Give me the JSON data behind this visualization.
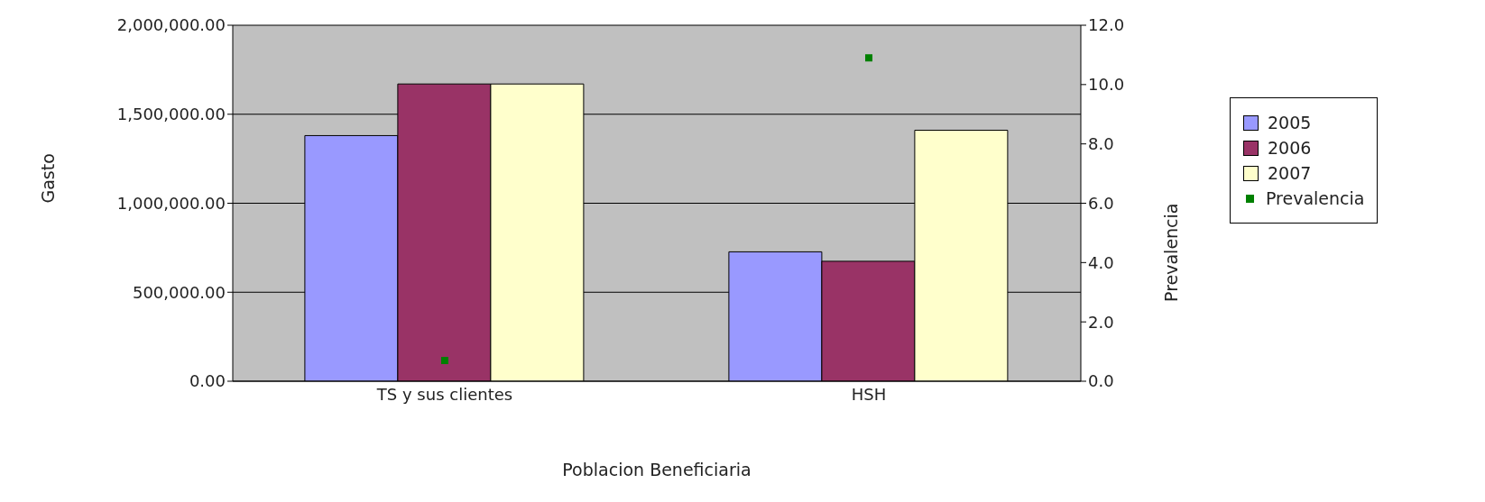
{
  "chart_data": {
    "type": "bar",
    "xlabel": "Poblacion Beneficiaria",
    "ylabel": "Gasto",
    "y2label": "Prevalencia",
    "categories": [
      "TS y sus clientes",
      "HSH"
    ],
    "series": [
      {
        "name": "2005",
        "color": "#9999ff",
        "values": [
          1380000,
          727000
        ]
      },
      {
        "name": "2006",
        "color": "#993366",
        "values": [
          1670000,
          674000
        ]
      },
      {
        "name": "2007",
        "color": "#ffffcc",
        "values": [
          1670000,
          1410000
        ]
      },
      {
        "name": "Prevalencia",
        "type": "scatter",
        "axis": "y2",
        "marker": "square",
        "color": "#008000",
        "values": [
          0.7,
          10.9
        ]
      }
    ],
    "ylim": [
      0,
      2000000
    ],
    "yticks": [
      {
        "value": 0,
        "label": "0.00"
      },
      {
        "value": 500000,
        "label": "500,000.00"
      },
      {
        "value": 1000000,
        "label": "1,000,000.00"
      },
      {
        "value": 1500000,
        "label": "1,500,000.00"
      },
      {
        "value": 2000000,
        "label": "2,000,000.00"
      }
    ],
    "y2lim": [
      0,
      12
    ],
    "y2ticks": [
      {
        "value": 0,
        "label": "0.0"
      },
      {
        "value": 2,
        "label": "2.0"
      },
      {
        "value": 4,
        "label": "4.0"
      },
      {
        "value": 6,
        "label": "6.0"
      },
      {
        "value": 8,
        "label": "8.0"
      },
      {
        "value": 10,
        "label": "10.0"
      },
      {
        "value": 12,
        "label": "12.0"
      }
    ],
    "grid": "y",
    "legend": "right"
  }
}
